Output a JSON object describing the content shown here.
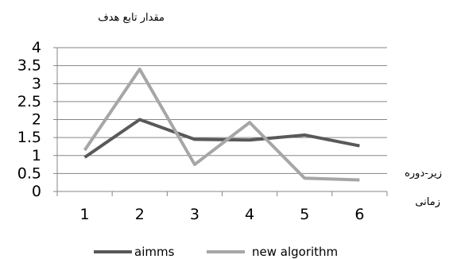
{
  "chart_data": {
    "type": "line",
    "title": "",
    "ylabel": "مقدار تابع هدف",
    "xlabel": [
      "زیر-دوره",
      "زمانی"
    ],
    "categories": [
      "1",
      "2",
      "3",
      "4",
      "5",
      "6"
    ],
    "ylim": [
      0,
      4
    ],
    "yticks": [
      "0",
      "0.5",
      "1",
      "1.5",
      "2",
      "2.5",
      "3",
      "3.5",
      "4"
    ],
    "grid": true,
    "legend_position": "bottom",
    "series": [
      {
        "name": "aimms",
        "values": [
          0.95,
          2.0,
          1.45,
          1.43,
          1.57,
          1.27
        ],
        "color": "#595959"
      },
      {
        "name": "new algorithm",
        "values": [
          1.15,
          3.4,
          0.75,
          1.92,
          0.37,
          0.32
        ],
        "color": "#a6a6a6"
      }
    ]
  }
}
